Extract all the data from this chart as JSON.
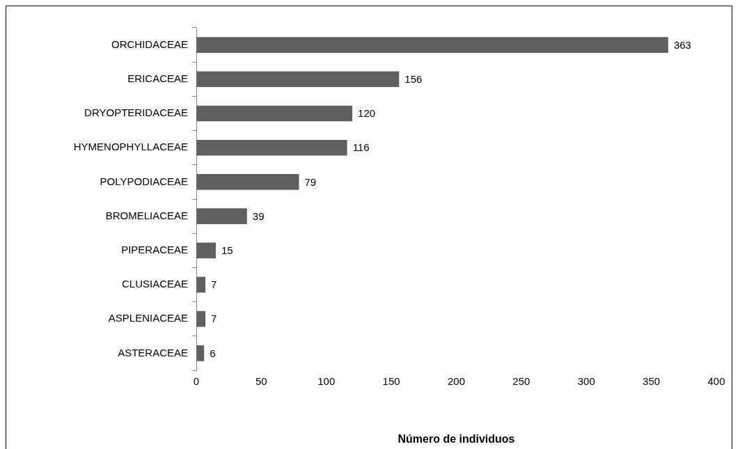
{
  "chart_data": {
    "type": "bar",
    "orientation": "horizontal",
    "xlabel": "Número de individuos",
    "categories": [
      "ORCHIDACEAE",
      "ERICACEAE",
      "DRYOPTERIDACEAE",
      "HYMENOPHYLLACEAE",
      "POLYPODIACEAE",
      "BROMELIACEAE",
      "PIPERACEAE",
      "CLUSIACEAE",
      "ASPLENIACEAE",
      "ASTERACEAE"
    ],
    "values": [
      363,
      156,
      120,
      116,
      79,
      39,
      15,
      7,
      7,
      6
    ],
    "color": "#606060",
    "xlim": [
      0,
      400
    ],
    "xticks": [
      0,
      50,
      100,
      150,
      200,
      250,
      300,
      350,
      400
    ],
    "grid": false,
    "legend": false,
    "data_labels": true
  }
}
